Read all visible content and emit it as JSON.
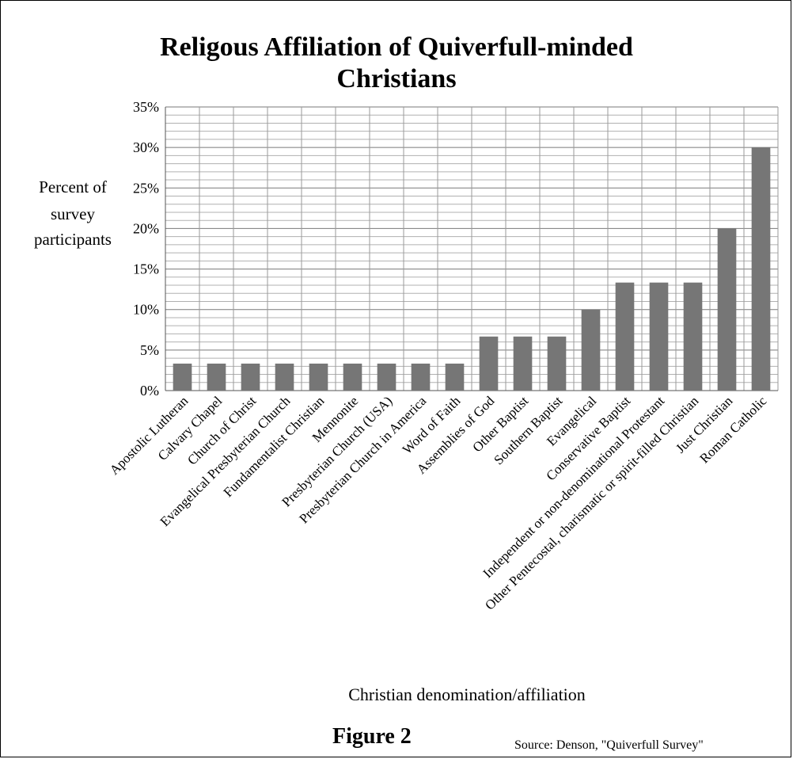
{
  "chart_data": {
    "type": "bar",
    "title_lines": [
      "Religous Affiliation of Quiverfull-minded",
      "Christians"
    ],
    "xlabel": "Christian denomination/affiliation",
    "ylabel_lines": [
      "Percent of",
      "survey",
      "participants"
    ],
    "ylim": [
      0,
      35
    ],
    "yticks": [
      "0%",
      "5%",
      "10%",
      "15%",
      "20%",
      "25%",
      "30%",
      "35%"
    ],
    "grid": true,
    "bar_color": "#767676",
    "categories": [
      "Apostolic Lutheran",
      "Calvary Chapel",
      "Church of Christ",
      "Evangelical Presbyterian Church",
      "Fundamentalist Christian",
      "Mennonite",
      "Presbyterian Church (USA)",
      "Presbyterian Church in America",
      "Word of Faith",
      "Assemblies of God",
      "Other Baptist",
      "Southern Baptist",
      "Evangelical",
      "Conservative Baptist",
      "Independent or non-denominational Protestant",
      "Other Pentecostal, charismatic or spirit-filled Christian",
      "Just Christian",
      "Roman Catholic"
    ],
    "values": [
      3.33,
      3.33,
      3.33,
      3.33,
      3.33,
      3.33,
      3.33,
      3.33,
      3.33,
      6.67,
      6.67,
      6.67,
      10,
      13.33,
      13.33,
      13.33,
      20,
      30
    ]
  },
  "figure_label": "Figure 2",
  "source_note": "Source: Denson, \"Quiverfull Survey\""
}
